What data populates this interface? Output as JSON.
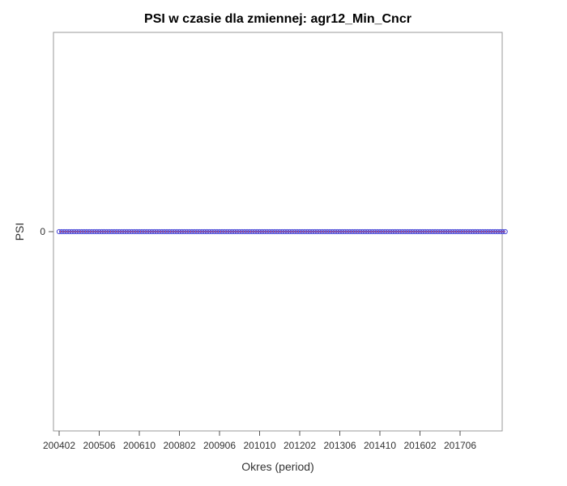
{
  "chart_data": {
    "type": "line",
    "title": "PSI w czasie dla zmiennej: agr12_Min_Cncr",
    "xlabel": "Okres (period)",
    "ylabel": "PSI",
    "x_tick_labels": [
      "200402",
      "200506",
      "200610",
      "200802",
      "200906",
      "201010",
      "201202",
      "201306",
      "201410",
      "201602",
      "201706"
    ],
    "y_tick_labels": [
      "0"
    ],
    "x_start": "200402",
    "x_end": "201812",
    "value": 0,
    "grid": false,
    "legend": "none",
    "series": [
      {
        "line_color": "#e0302a",
        "marker_color": "#4a4ad8"
      }
    ]
  }
}
